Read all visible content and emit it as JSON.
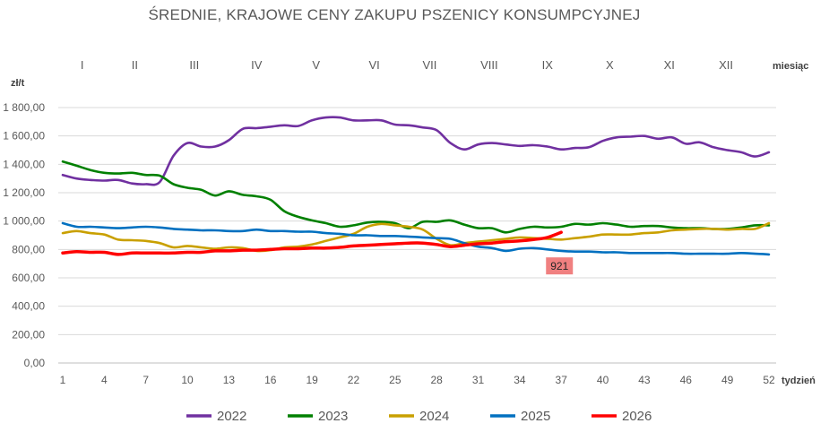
{
  "chart_data": {
    "type": "line",
    "title": "ŚREDNIE, KRAJOWE CENY ZAKUPU PSZENICY KONSUMPCYJNEJ",
    "ylabel": "zł/t",
    "xlabel": "tydzień",
    "month_axis_label": "miesiąc",
    "months": [
      "I",
      "II",
      "III",
      "IV",
      "V",
      "VI",
      "VII",
      "VIII",
      "IX",
      "X",
      "XI",
      "XII"
    ],
    "month_weeks": [
      2.4,
      6.2,
      10.5,
      15,
      19.3,
      23.5,
      27.5,
      31.8,
      36,
      40.5,
      44.8,
      48.9
    ],
    "x_ticks": [
      1,
      4,
      7,
      10,
      13,
      16,
      19,
      22,
      25,
      28,
      31,
      34,
      37,
      40,
      43,
      46,
      49,
      52
    ],
    "y_ticks": [
      0,
      200,
      400,
      600,
      800,
      1000,
      1200,
      1400,
      1600,
      1800
    ],
    "y_tick_labels": [
      "0,00",
      "200,00",
      "400,00",
      "600,00",
      "800,00",
      "1 000,00",
      "1 200,00",
      "1 400,00",
      "1 600,00",
      "1 800,00"
    ],
    "xlim": [
      1,
      52
    ],
    "ylim": [
      0,
      1800
    ],
    "grid": true,
    "legend_position": "bottom",
    "series": [
      {
        "name": "2022",
        "color": "#7030a0",
        "x": [
          1,
          2,
          3,
          4,
          5,
          6,
          7,
          8,
          9,
          10,
          11,
          12,
          13,
          14,
          15,
          16,
          17,
          18,
          19,
          20,
          21,
          22,
          23,
          24,
          25,
          26,
          27,
          28,
          29,
          30,
          31,
          32,
          33,
          34,
          35,
          36,
          37,
          38,
          39,
          40,
          41,
          42,
          43,
          44,
          45,
          46,
          47,
          48,
          49,
          50,
          51,
          52
        ],
        "y": [
          1325,
          1300,
          1290,
          1285,
          1290,
          1265,
          1260,
          1275,
          1460,
          1550,
          1525,
          1525,
          1570,
          1650,
          1655,
          1665,
          1675,
          1670,
          1710,
          1730,
          1730,
          1710,
          1710,
          1710,
          1680,
          1675,
          1660,
          1640,
          1550,
          1505,
          1540,
          1550,
          1540,
          1530,
          1535,
          1525,
          1505,
          1515,
          1520,
          1565,
          1590,
          1595,
          1600,
          1580,
          1590,
          1545,
          1555,
          1520,
          1500,
          1485,
          1455,
          1485
        ]
      },
      {
        "name": "2023",
        "color": "#008000",
        "x": [
          1,
          2,
          3,
          4,
          5,
          6,
          7,
          8,
          9,
          10,
          11,
          12,
          13,
          14,
          15,
          16,
          17,
          18,
          19,
          20,
          21,
          22,
          23,
          24,
          25,
          26,
          27,
          28,
          29,
          30,
          31,
          32,
          33,
          34,
          35,
          36,
          37,
          38,
          39,
          40,
          41,
          42,
          43,
          44,
          45,
          46,
          47,
          48,
          49,
          50,
          51,
          52
        ],
        "y": [
          1420,
          1390,
          1360,
          1340,
          1335,
          1340,
          1325,
          1320,
          1260,
          1235,
          1220,
          1180,
          1210,
          1185,
          1175,
          1150,
          1070,
          1030,
          1005,
          985,
          960,
          970,
          990,
          995,
          985,
          950,
          995,
          995,
          1005,
          975,
          950,
          950,
          920,
          945,
          960,
          955,
          960,
          980,
          975,
          985,
          975,
          960,
          965,
          965,
          955,
          950,
          950,
          945,
          945,
          955,
          970,
          970
        ]
      },
      {
        "name": "2024",
        "color": "#c9a000",
        "x": [
          1,
          2,
          3,
          4,
          5,
          6,
          7,
          8,
          9,
          10,
          11,
          12,
          13,
          14,
          15,
          16,
          17,
          18,
          19,
          20,
          21,
          22,
          23,
          24,
          25,
          26,
          27,
          28,
          29,
          30,
          31,
          32,
          33,
          34,
          35,
          36,
          37,
          38,
          39,
          40,
          41,
          42,
          43,
          44,
          45,
          46,
          47,
          48,
          49,
          50,
          51,
          52
        ],
        "y": [
          915,
          930,
          915,
          905,
          870,
          865,
          860,
          845,
          815,
          825,
          815,
          805,
          815,
          810,
          790,
          795,
          815,
          820,
          835,
          860,
          885,
          910,
          960,
          980,
          970,
          960,
          940,
          875,
          830,
          845,
          855,
          865,
          875,
          885,
          880,
          875,
          870,
          880,
          890,
          905,
          905,
          905,
          915,
          920,
          935,
          940,
          945,
          945,
          940,
          945,
          945,
          985
        ]
      },
      {
        "name": "2025",
        "color": "#0070c0",
        "x": [
          1,
          2,
          3,
          4,
          5,
          6,
          7,
          8,
          9,
          10,
          11,
          12,
          13,
          14,
          15,
          16,
          17,
          18,
          19,
          20,
          21,
          22,
          23,
          24,
          25,
          26,
          27,
          28,
          29,
          30,
          31,
          32,
          33,
          34,
          35,
          36,
          37,
          38,
          39,
          40,
          41,
          42,
          43,
          44,
          45,
          46,
          47,
          48,
          49,
          50,
          51,
          52
        ],
        "y": [
          985,
          960,
          960,
          955,
          950,
          955,
          960,
          955,
          945,
          940,
          935,
          935,
          930,
          930,
          940,
          930,
          930,
          925,
          925,
          915,
          910,
          900,
          900,
          895,
          895,
          890,
          885,
          880,
          875,
          845,
          820,
          810,
          790,
          805,
          810,
          800,
          790,
          785,
          785,
          780,
          780,
          775,
          775,
          775,
          775,
          770,
          770,
          770,
          770,
          775,
          770,
          765
        ]
      },
      {
        "name": "2026",
        "color": "#ff0000",
        "x": [
          1,
          2,
          3,
          4,
          5,
          6,
          7,
          8,
          9,
          10,
          11,
          12,
          13,
          14,
          15,
          16,
          17,
          18,
          19,
          20,
          21,
          22,
          23,
          24,
          25,
          26,
          27,
          28,
          29,
          30,
          31,
          32,
          33,
          34,
          35,
          36,
          37
        ],
        "y": [
          775,
          785,
          780,
          780,
          765,
          775,
          775,
          775,
          775,
          780,
          780,
          790,
          790,
          795,
          795,
          800,
          805,
          805,
          810,
          810,
          815,
          825,
          830,
          835,
          840,
          845,
          845,
          835,
          820,
          830,
          840,
          845,
          855,
          860,
          870,
          885,
          921
        ]
      }
    ],
    "annotations": [
      {
        "text": "921",
        "x": 37,
        "y": 921,
        "background": "#f08080"
      }
    ]
  }
}
